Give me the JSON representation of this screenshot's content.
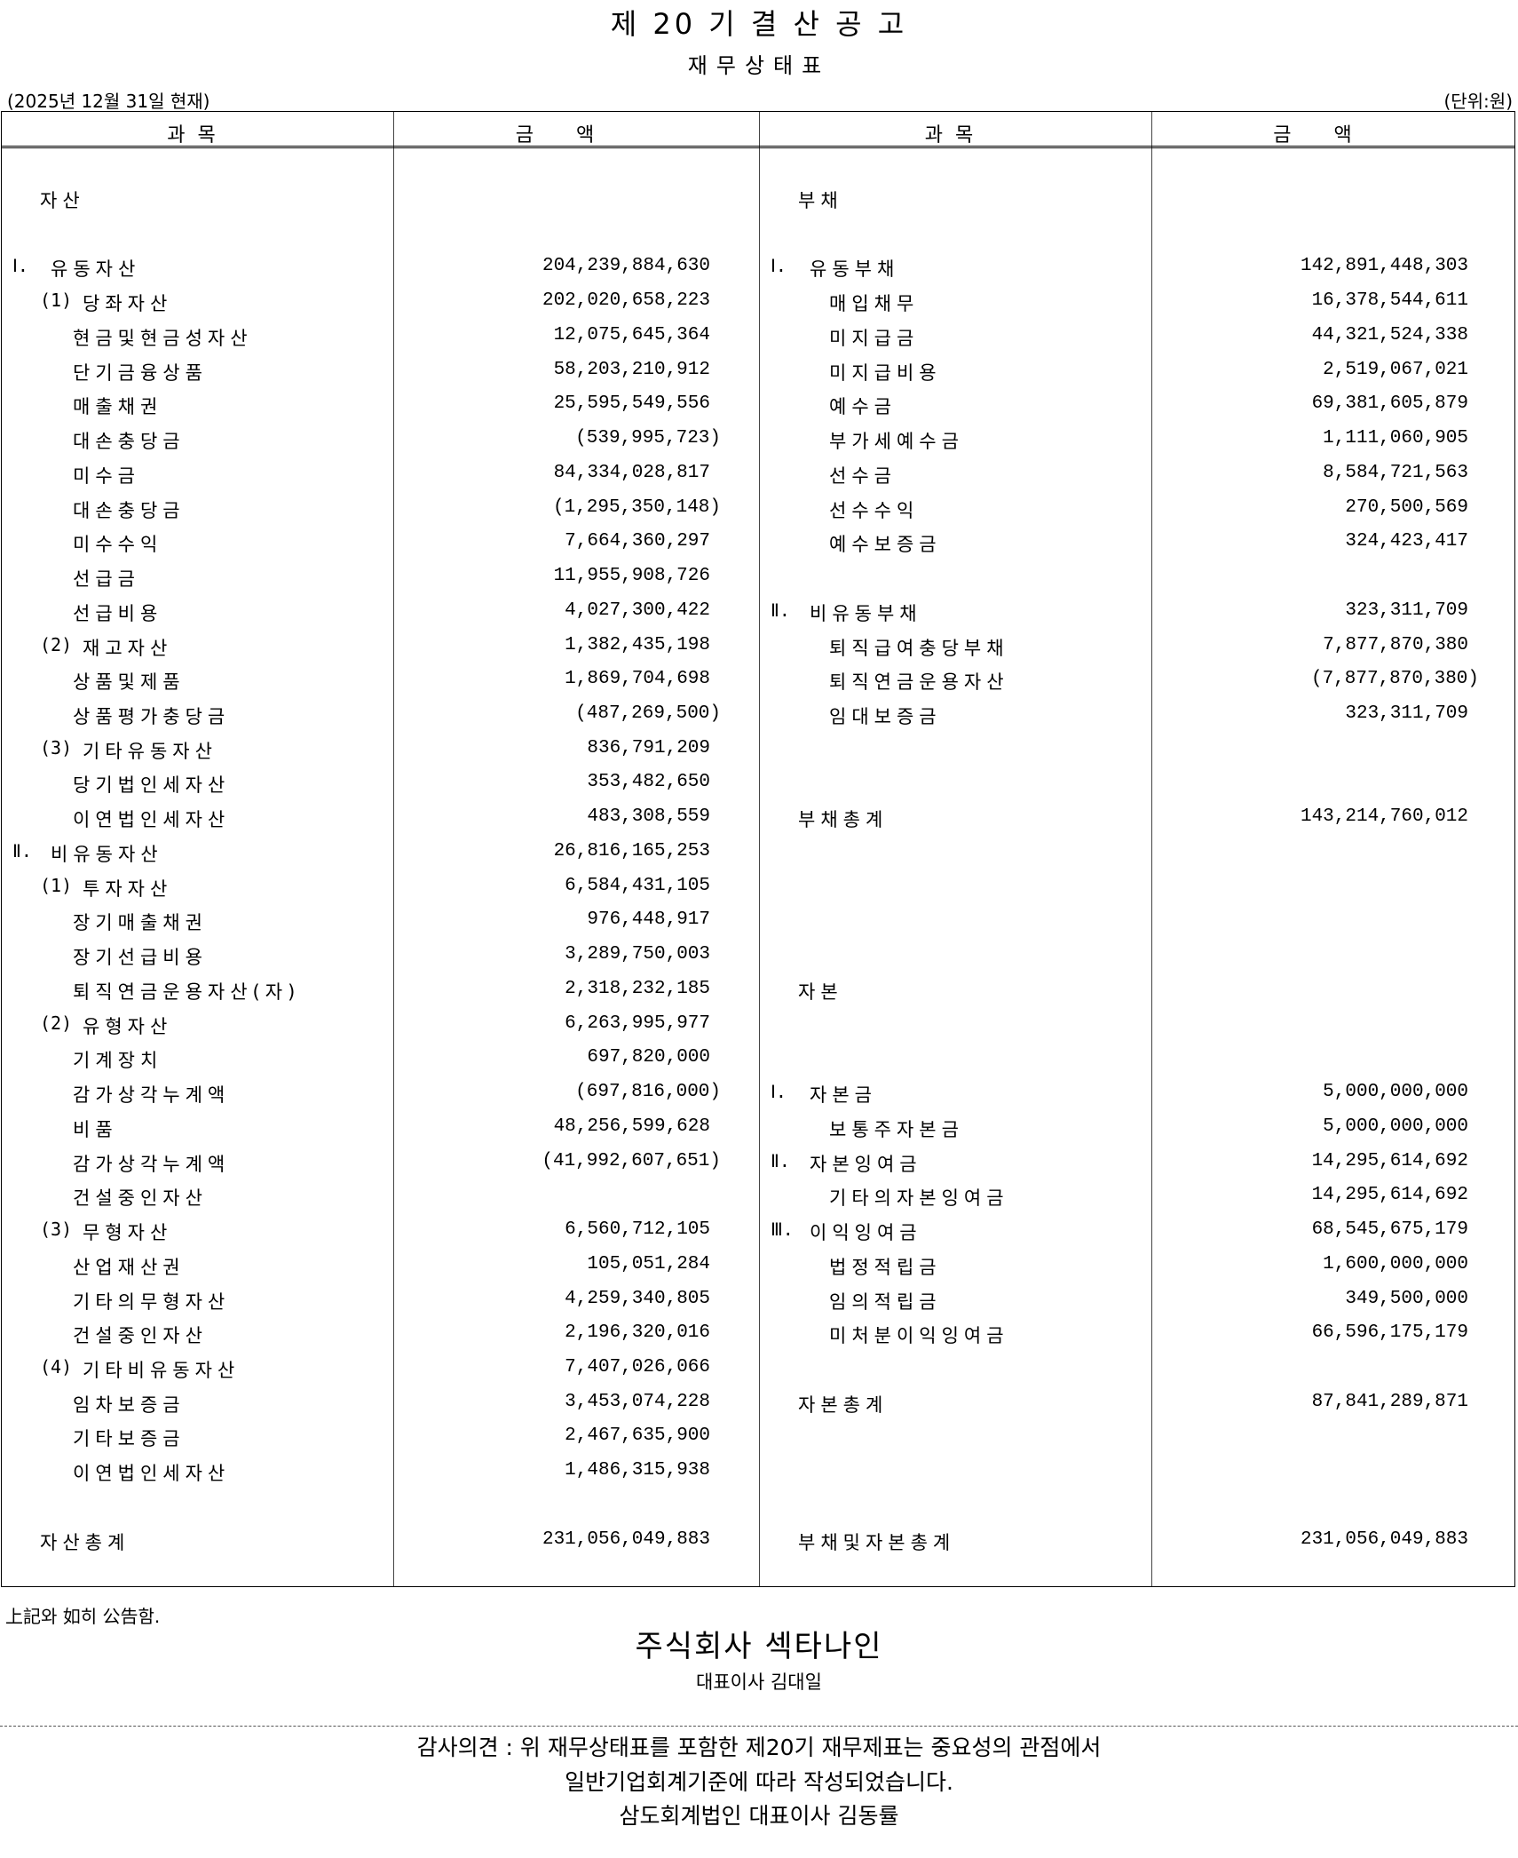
{
  "header": {
    "title": "제 20 기 결 산 공 고",
    "subtitle": "재무상태표",
    "date": "(2025년 12월 31일 현재)",
    "unit": "(단위:원)"
  },
  "columns": [
    "과목",
    "금액",
    "과목",
    "금액"
  ],
  "rows": [
    {
      "left": {
        "type": "head",
        "text": "자산"
      },
      "right": {
        "type": "head",
        "text": "부채"
      }
    },
    {},
    {
      "left": {
        "type": "1",
        "prefix": "Ⅰ.",
        "text": "유동자산",
        "amount": "204,239,884,630"
      },
      "right": {
        "type": "1",
        "prefix": "Ⅰ.",
        "text": "유동부채",
        "amount": "142,891,448,303"
      }
    },
    {
      "left": {
        "type": "2",
        "prefix": "(1)",
        "text": "당좌자산",
        "amount": "202,020,658,223"
      },
      "right": {
        "type": "3",
        "text": "매입채무",
        "amount": "16,378,544,611"
      }
    },
    {
      "left": {
        "type": "3",
        "text": "현금및현금성자산",
        "amount": "12,075,645,364"
      },
      "right": {
        "type": "3",
        "text": "미지급금",
        "amount": "44,321,524,338"
      }
    },
    {
      "left": {
        "type": "3",
        "text": "단기금융상품",
        "amount": "58,203,210,912"
      },
      "right": {
        "type": "3",
        "text": "미지급비용",
        "amount": "2,519,067,021"
      }
    },
    {
      "left": {
        "type": "3",
        "text": "매출채권",
        "amount": "25,595,549,556"
      },
      "right": {
        "type": "3",
        "text": "예수금",
        "amount": "69,381,605,879"
      }
    },
    {
      "left": {
        "type": "3",
        "text": "대손충당금",
        "amount": "(539,995,723)"
      },
      "right": {
        "type": "3",
        "text": "부가세예수금",
        "amount": "1,111,060,905"
      }
    },
    {
      "left": {
        "type": "3",
        "text": "미수금",
        "amount": "84,334,028,817"
      },
      "right": {
        "type": "3",
        "text": "선수금",
        "amount": "8,584,721,563"
      }
    },
    {
      "left": {
        "type": "3",
        "text": "대손충당금",
        "amount": "(1,295,350,148)"
      },
      "right": {
        "type": "3",
        "text": "선수수익",
        "amount": "270,500,569"
      }
    },
    {
      "left": {
        "type": "3",
        "text": "미수수익",
        "amount": "7,664,360,297"
      },
      "right": {
        "type": "3",
        "text": "예수보증금",
        "amount": "324,423,417"
      }
    },
    {
      "left": {
        "type": "3",
        "text": "선급금",
        "amount": "11,955,908,726"
      }
    },
    {
      "left": {
        "type": "3",
        "text": "선급비용",
        "amount": "4,027,300,422"
      },
      "right": {
        "type": "1",
        "prefix": "Ⅱ.",
        "text": "비유동부채",
        "amount": "323,311,709"
      }
    },
    {
      "left": {
        "type": "2",
        "prefix": "(2)",
        "text": "재고자산",
        "amount": "1,382,435,198"
      },
      "right": {
        "type": "3",
        "text": "퇴직급여충당부채",
        "amount": "7,877,870,380"
      }
    },
    {
      "left": {
        "type": "3",
        "text": "상품및제품",
        "amount": "1,869,704,698"
      },
      "right": {
        "type": "3",
        "text": "퇴직연금운용자산",
        "amount": "(7,877,870,380)"
      }
    },
    {
      "left": {
        "type": "3",
        "text": "상품평가충당금",
        "amount": "(487,269,500)"
      },
      "right": {
        "type": "3",
        "text": "임대보증금",
        "amount": "323,311,709"
      }
    },
    {
      "left": {
        "type": "2",
        "prefix": "(3)",
        "text": "기타유동자산",
        "amount": "836,791,209"
      }
    },
    {
      "left": {
        "type": "3",
        "text": "당기법인세자산",
        "amount": "353,482,650"
      }
    },
    {
      "left": {
        "type": "3",
        "text": "이연법인세자산",
        "amount": "483,308,559"
      },
      "right": {
        "type": "head",
        "text": "부채총계",
        "amount": "143,214,760,012"
      }
    },
    {
      "left": {
        "type": "1",
        "prefix": "Ⅱ.",
        "text": "비유동자산",
        "amount": "26,816,165,253"
      }
    },
    {
      "left": {
        "type": "2",
        "prefix": "(1)",
        "text": "투자자산",
        "amount": "6,584,431,105"
      }
    },
    {
      "left": {
        "type": "3",
        "text": "장기매출채권",
        "amount": "976,448,917"
      }
    },
    {
      "left": {
        "type": "3",
        "text": "장기선급비용",
        "amount": "3,289,750,003"
      }
    },
    {
      "left": {
        "type": "3",
        "text": "퇴직연금운용자산(자)",
        "amount": "2,318,232,185"
      },
      "right": {
        "type": "head",
        "text": "자본"
      }
    },
    {
      "left": {
        "type": "2",
        "prefix": "(2)",
        "text": "유형자산",
        "amount": "6,263,995,977"
      }
    },
    {
      "left": {
        "type": "3",
        "text": "기계장치",
        "amount": "697,820,000"
      }
    },
    {
      "left": {
        "type": "3",
        "text": "감가상각누계액",
        "amount": "(697,816,000)"
      },
      "right": {
        "type": "1",
        "prefix": "Ⅰ.",
        "text": "자본금",
        "amount": "5,000,000,000"
      }
    },
    {
      "left": {
        "type": "3",
        "text": "비품",
        "amount": "48,256,599,628"
      },
      "right": {
        "type": "3",
        "text": "보통주자본금",
        "amount": "5,000,000,000"
      }
    },
    {
      "left": {
        "type": "3",
        "text": "감가상각누계액",
        "amount": "(41,992,607,651)"
      },
      "right": {
        "type": "1",
        "prefix": "Ⅱ.",
        "text": "자본잉여금",
        "amount": "14,295,614,692"
      }
    },
    {
      "left": {
        "type": "3",
        "text": "건설중인자산"
      },
      "right": {
        "type": "3",
        "text": "기타의자본잉여금",
        "amount": "14,295,614,692"
      }
    },
    {
      "left": {
        "type": "2",
        "prefix": "(3)",
        "text": "무형자산",
        "amount": "6,560,712,105"
      },
      "right": {
        "type": "1",
        "prefix": "Ⅲ.",
        "text": "이익잉여금",
        "amount": "68,545,675,179"
      }
    },
    {
      "left": {
        "type": "3",
        "text": "산업재산권",
        "amount": "105,051,284"
      },
      "right": {
        "type": "3",
        "text": "법정적립금",
        "amount": "1,600,000,000"
      }
    },
    {
      "left": {
        "type": "3",
        "text": "기타의무형자산",
        "amount": "4,259,340,805"
      },
      "right": {
        "type": "3",
        "text": "임의적립금",
        "amount": "349,500,000"
      }
    },
    {
      "left": {
        "type": "3",
        "text": "건설중인자산",
        "amount": "2,196,320,016"
      },
      "right": {
        "type": "3",
        "text": "미처분이익잉여금",
        "amount": "66,596,175,179"
      }
    },
    {
      "left": {
        "type": "2",
        "prefix": "(4)",
        "text": "기타비유동자산",
        "amount": "7,407,026,066"
      }
    },
    {
      "left": {
        "type": "3",
        "text": "임차보증금",
        "amount": "3,453,074,228"
      },
      "right": {
        "type": "head",
        "text": "자본총계",
        "amount": "87,841,289,871"
      }
    },
    {
      "left": {
        "type": "3",
        "text": "기타보증금",
        "amount": "2,467,635,900"
      }
    },
    {
      "left": {
        "type": "3",
        "text": "이연법인세자산",
        "amount": "1,486,315,938"
      }
    },
    {},
    {
      "left": {
        "type": "head",
        "text": "자산총계",
        "amount": "231,056,049,883"
      },
      "right": {
        "type": "head",
        "text": "부채및자본총계",
        "amount": "231,056,049,883"
      }
    }
  ],
  "footer": {
    "note": "上記와 如히 公告함.",
    "company": "주식회사 섹타나인",
    "ceo": "대표이사 김대일",
    "audit": [
      "감사의견 : 위 재무상태표를 포함한 제20기 재무제표는 중요성의 관점에서",
      "일반기업회계기준에 따라 작성되었습니다.",
      "삼도회계법인 대표이사 김동률"
    ]
  }
}
